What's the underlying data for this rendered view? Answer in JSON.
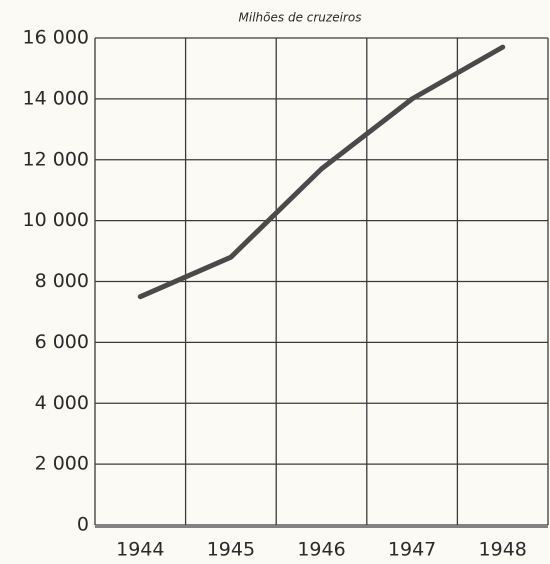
{
  "chart_data": {
    "type": "line",
    "title": "Milhões de cruzeiros",
    "categories": [
      "1944",
      "1945",
      "1946",
      "1947",
      "1948"
    ],
    "series": [
      {
        "color": "#4a4a4a",
        "values": [
          7500,
          8800,
          11700,
          14000,
          15700
        ]
      }
    ],
    "ylim": [
      0,
      16000
    ],
    "yticks": [
      0,
      {
        "value": 2000,
        "label": "2 000"
      },
      {
        "value": 4000,
        "label": "4 000"
      },
      {
        "value": 6000,
        "label": "6 000"
      },
      {
        "value": 8000,
        "label": "8 000"
      },
      {
        "value": 10000,
        "label": "10 000"
      },
      {
        "value": 12000,
        "label": "12 000"
      },
      {
        "value": 14000,
        "label": "14 000"
      },
      {
        "value": 16000,
        "label": "16 000"
      }
    ],
    "grid": true
  }
}
